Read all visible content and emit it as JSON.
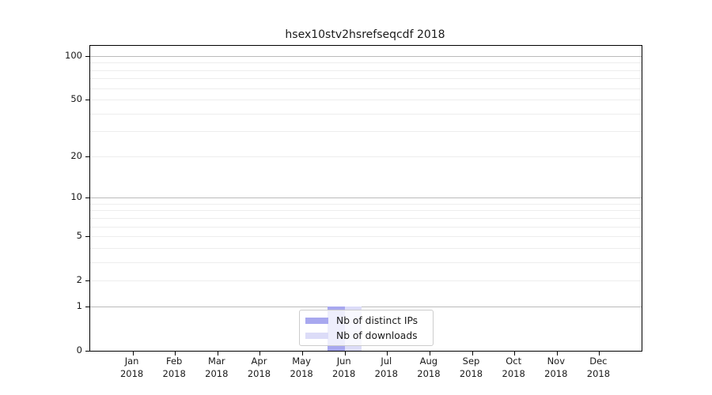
{
  "chart_data": {
    "type": "bar",
    "title": "hsex10stv2hsrefseqcdf 2018",
    "categories": [
      "Jan",
      "Feb",
      "Mar",
      "Apr",
      "May",
      "Jun",
      "Jul",
      "Aug",
      "Sep",
      "Oct",
      "Nov",
      "Dec"
    ],
    "category_subline": "2018",
    "series": [
      {
        "name": "Nb of distinct IPs",
        "color": "#a8a8ef",
        "values": [
          0,
          0,
          0,
          0,
          0,
          1,
          0,
          0,
          0,
          0,
          0,
          0
        ]
      },
      {
        "name": "Nb of downloads",
        "color": "#dcdcf8",
        "values": [
          0,
          0,
          0,
          0,
          0,
          1,
          0,
          0,
          0,
          0,
          0,
          0
        ]
      }
    ],
    "yscale": "log1p",
    "ylim": [
      0,
      118
    ],
    "y_tick_values": [
      0,
      1,
      2,
      5,
      10,
      20,
      50,
      100
    ],
    "y_tick_labels": [
      "0",
      "1",
      "2",
      "5",
      "10",
      "20",
      "50",
      "100"
    ],
    "y_major_gridlines": [
      1,
      10,
      100
    ],
    "y_minor_gridlines": [
      2,
      3,
      4,
      5,
      6,
      7,
      8,
      9,
      20,
      30,
      40,
      50,
      60,
      70,
      80,
      90
    ],
    "grid": true,
    "legend_position": "lower center",
    "colors": {
      "major_grid": "#bbbbbb",
      "minor_grid": "#ededed",
      "spine": "#000000",
      "text": "#1a1a1a"
    }
  }
}
